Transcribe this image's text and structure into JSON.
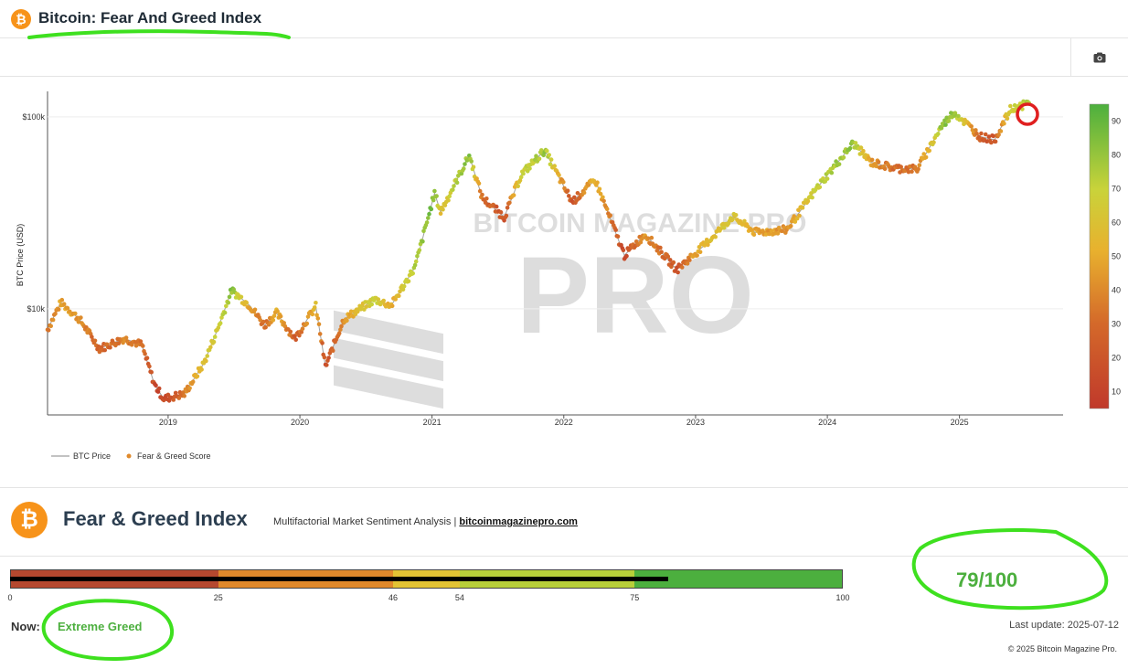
{
  "header": {
    "title": "Bitcoin: Fear And Greed Index",
    "logo_symbol": "₿",
    "camera_icon": "camera-icon"
  },
  "chart_data": {
    "type": "scatter",
    "ylabel": "BTC Price (USD)",
    "y_scale": "log",
    "ylim": [
      2800,
      130000
    ],
    "xlim": [
      "2018-02-01",
      "2025-10-15"
    ],
    "x_ticks": [
      "2019",
      "2020",
      "2021",
      "2022",
      "2023",
      "2024",
      "2025"
    ],
    "y_ticks": [
      {
        "label": "$10k",
        "value": 10000
      },
      {
        "label": "$100k",
        "value": 100000
      }
    ],
    "colorbar_ticks": [
      "10",
      "20",
      "30",
      "40",
      "50",
      "60",
      "70",
      "80",
      "90"
    ],
    "colorscale": [
      "#c0392b",
      "#d4692a",
      "#e8b12e",
      "#c9d33a",
      "#4caf3e"
    ],
    "legend": {
      "position": "bottom-left",
      "items": [
        {
          "name": "BTC Price",
          "symbol": "line",
          "color": "#9e9e9e"
        },
        {
          "name": "Fear & Greed Score",
          "symbol": "dot",
          "color": "#e08a2c"
        }
      ]
    },
    "watermark": "BITCOIN MAGAZINE PRO",
    "series": [
      {
        "name": "Fear & Greed Score",
        "points": [
          {
            "x": "2018-02-01",
            "price": 7800,
            "score": 30
          },
          {
            "x": "2018-03-10",
            "price": 10800,
            "score": 45
          },
          {
            "x": "2018-05-01",
            "price": 8800,
            "score": 40
          },
          {
            "x": "2018-06-25",
            "price": 6200,
            "score": 20
          },
          {
            "x": "2018-09-01",
            "price": 7000,
            "score": 35
          },
          {
            "x": "2018-10-20",
            "price": 6500,
            "score": 25
          },
          {
            "x": "2018-11-25",
            "price": 4000,
            "score": 10
          },
          {
            "x": "2018-12-20",
            "price": 3400,
            "score": 8
          },
          {
            "x": "2019-02-15",
            "price": 3600,
            "score": 30
          },
          {
            "x": "2019-04-10",
            "price": 5200,
            "score": 60
          },
          {
            "x": "2019-05-20",
            "price": 8000,
            "score": 72
          },
          {
            "x": "2019-06-26",
            "price": 12500,
            "score": 88
          },
          {
            "x": "2019-08-15",
            "price": 10400,
            "score": 45
          },
          {
            "x": "2019-09-25",
            "price": 8200,
            "score": 25
          },
          {
            "x": "2019-10-28",
            "price": 9500,
            "score": 50
          },
          {
            "x": "2019-12-18",
            "price": 7000,
            "score": 20
          },
          {
            "x": "2020-02-14",
            "price": 10300,
            "score": 55
          },
          {
            "x": "2020-03-12",
            "price": 5000,
            "score": 10
          },
          {
            "x": "2020-05-01",
            "price": 8800,
            "score": 40
          },
          {
            "x": "2020-07-27",
            "price": 11200,
            "score": 75
          },
          {
            "x": "2020-09-10",
            "price": 10400,
            "score": 48
          },
          {
            "x": "2020-11-15",
            "price": 16500,
            "score": 80
          },
          {
            "x": "2021-01-08",
            "price": 40000,
            "score": 92
          },
          {
            "x": "2021-01-25",
            "price": 32000,
            "score": 60
          },
          {
            "x": "2021-04-14",
            "price": 63000,
            "score": 90
          },
          {
            "x": "2021-05-20",
            "price": 38000,
            "score": 25
          },
          {
            "x": "2021-07-20",
            "price": 30000,
            "score": 15
          },
          {
            "x": "2021-09-05",
            "price": 50000,
            "score": 70
          },
          {
            "x": "2021-11-09",
            "price": 67000,
            "score": 85
          },
          {
            "x": "2022-01-24",
            "price": 36000,
            "score": 15
          },
          {
            "x": "2022-03-29",
            "price": 47000,
            "score": 55
          },
          {
            "x": "2022-06-18",
            "price": 19000,
            "score": 8
          },
          {
            "x": "2022-08-14",
            "price": 24500,
            "score": 40
          },
          {
            "x": "2022-11-10",
            "price": 16000,
            "score": 15
          },
          {
            "x": "2023-01-20",
            "price": 21000,
            "score": 55
          },
          {
            "x": "2023-04-14",
            "price": 30300,
            "score": 65
          },
          {
            "x": "2023-06-15",
            "price": 25000,
            "score": 45
          },
          {
            "x": "2023-09-10",
            "price": 25800,
            "score": 40
          },
          {
            "x": "2023-12-05",
            "price": 43000,
            "score": 75
          },
          {
            "x": "2024-03-13",
            "price": 73000,
            "score": 88
          },
          {
            "x": "2024-05-01",
            "price": 58000,
            "score": 40
          },
          {
            "x": "2024-07-05",
            "price": 54000,
            "score": 25
          },
          {
            "x": "2024-09-06",
            "price": 53500,
            "score": 30
          },
          {
            "x": "2024-11-12",
            "price": 89000,
            "score": 85
          },
          {
            "x": "2024-12-17",
            "price": 106000,
            "score": 88
          },
          {
            "x": "2025-02-27",
            "price": 79000,
            "score": 20
          },
          {
            "x": "2025-04-08",
            "price": 76000,
            "score": 15
          },
          {
            "x": "2025-05-22",
            "price": 109000,
            "score": 72
          },
          {
            "x": "2025-07-12",
            "price": 118000,
            "score": 79
          }
        ]
      }
    ]
  },
  "fear_greed": {
    "title": "Fear & Greed Index",
    "subtitle": "Multifactorial Market Sentiment Analysis |",
    "link": "bitcoinmagazinepro.com",
    "gauge_segments": [
      {
        "from": 0,
        "to": 25,
        "color": "#b5482f"
      },
      {
        "from": 25,
        "to": 46,
        "color": "#e0892b"
      },
      {
        "from": 46,
        "to": 54,
        "color": "#e3c334"
      },
      {
        "from": 54,
        "to": 75,
        "color": "#b8cf3a"
      },
      {
        "from": 75,
        "to": 100,
        "color": "#4caf3e"
      }
    ],
    "gauge_value": 79,
    "tick_labels": [
      "0",
      "25",
      "46",
      "54",
      "75",
      "100"
    ],
    "score_display": "79/100",
    "now_label": "Now:",
    "now_value": "Extreme Greed",
    "last_update": "Last update: 2025-07-12",
    "copyright": "© 2025 Bitcoin Magazine Pro."
  }
}
